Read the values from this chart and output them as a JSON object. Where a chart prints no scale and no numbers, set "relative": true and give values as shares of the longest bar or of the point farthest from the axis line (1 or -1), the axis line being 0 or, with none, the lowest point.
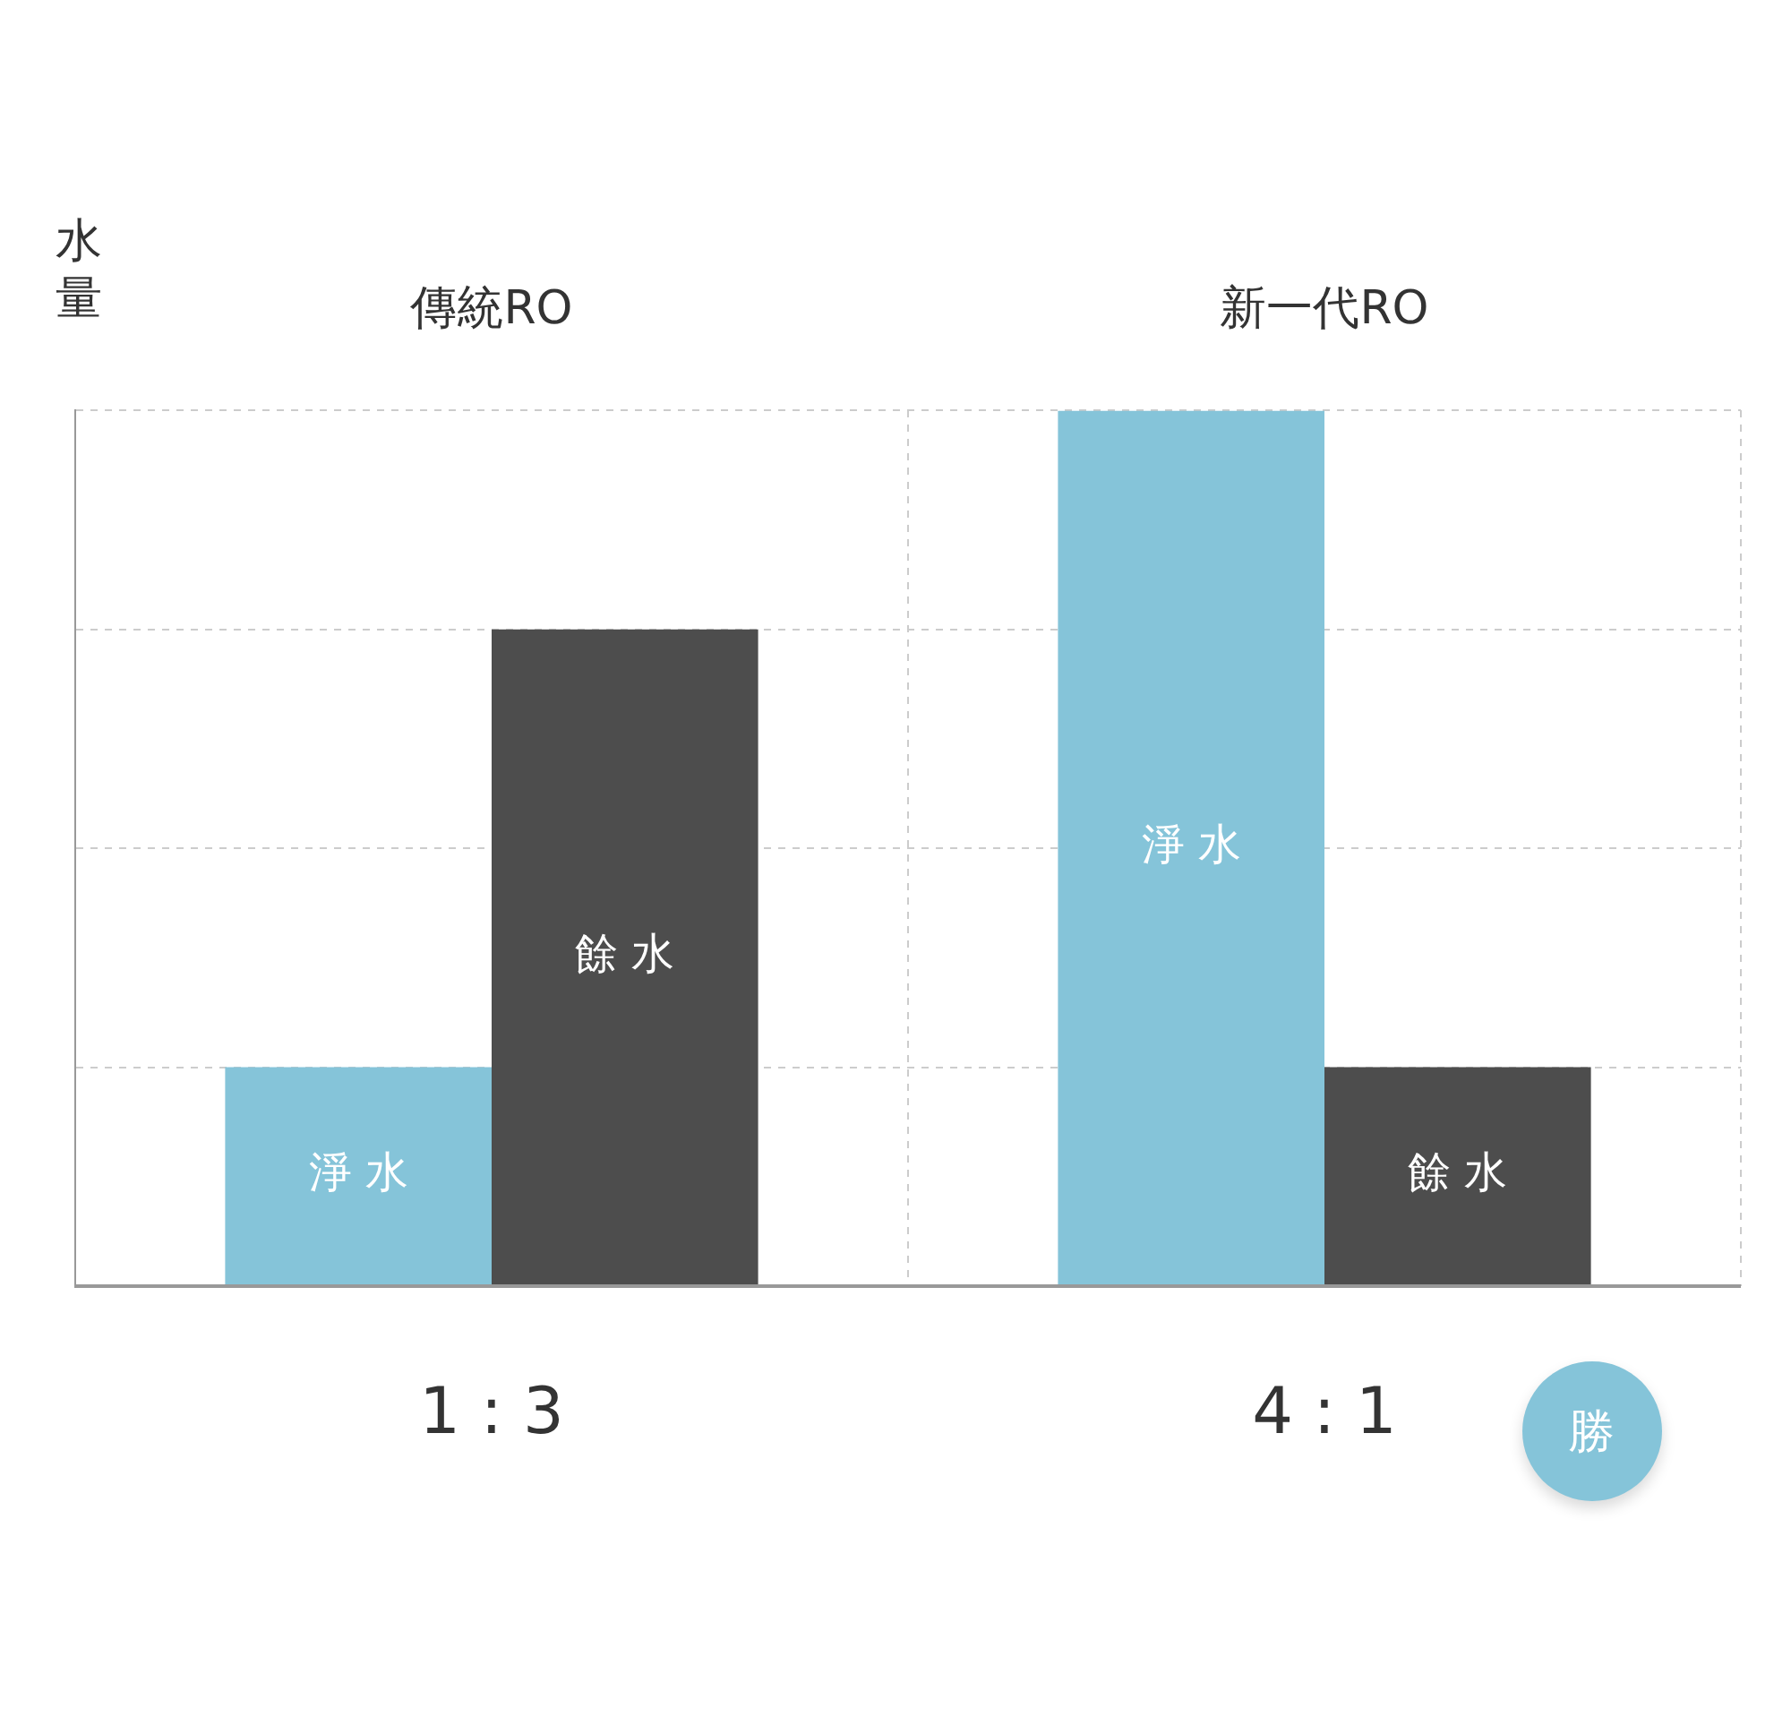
{
  "chart_data": {
    "type": "bar",
    "ylabel": "水量",
    "categories": [
      "傳統RO",
      "新一代RO"
    ],
    "relative": true,
    "grid": true,
    "legend": false,
    "series": [
      {
        "name": "淨水",
        "color": "#85c4d9",
        "values": [
          0.25,
          1
        ]
      },
      {
        "name": "餘水",
        "color": "#4d4d4d",
        "values": [
          0.75,
          0.25
        ]
      }
    ],
    "annotations": [
      "1 : 3",
      "4 : 1",
      "勝"
    ]
  }
}
